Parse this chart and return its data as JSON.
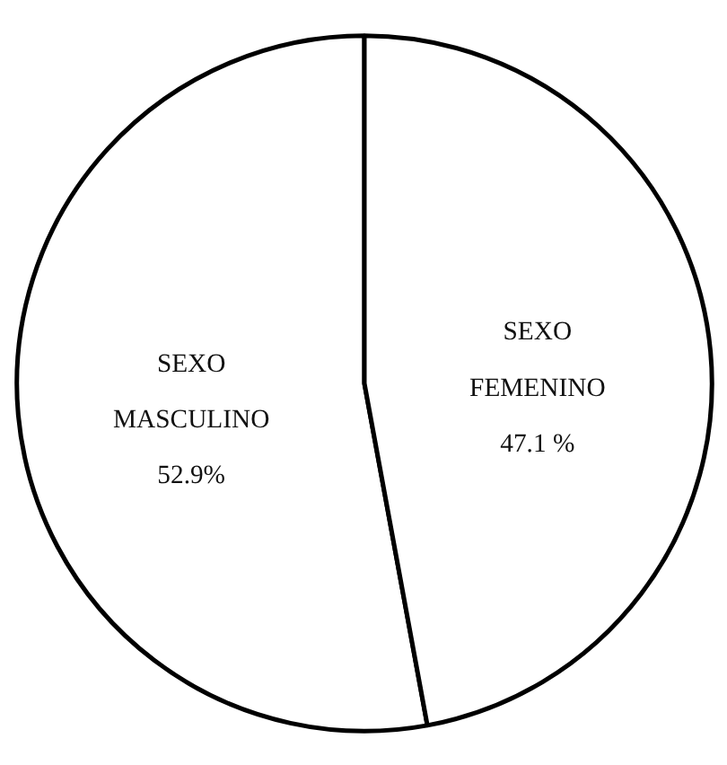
{
  "chart_data": {
    "type": "pie",
    "categories": [
      "SEXO MASCULINO",
      "SEXO FEMENINO"
    ],
    "values": [
      52.9,
      47.1
    ],
    "colors": [
      "#ffffff",
      "#ffffff"
    ],
    "value_labels": [
      "52.9%",
      "47.1 %"
    ]
  }
}
